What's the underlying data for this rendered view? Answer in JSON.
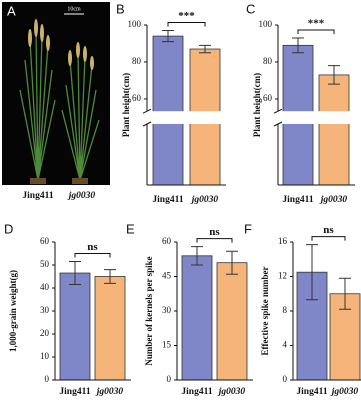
{
  "photo": {
    "panel": "A",
    "scale_text": "10cm",
    "labels": [
      "Jing411",
      "jg0030"
    ]
  },
  "chart_data": [
    {
      "type": "bar",
      "panel": "B",
      "ylabel": "Plant height(cm)",
      "categories": [
        "Jing411",
        "jg0030"
      ],
      "values": [
        94,
        87
      ],
      "errors": [
        3,
        2
      ],
      "colors": [
        "#8087c9",
        "#f5b57a"
      ],
      "ylim": [
        0,
        100
      ],
      "yticks": [
        60,
        80,
        100
      ],
      "axis_break": [
        30,
        55
      ],
      "significance": "***"
    },
    {
      "type": "bar",
      "panel": "C",
      "ylabel": "Plant height(cm)",
      "categories": [
        "Jing411",
        "jg0030"
      ],
      "values": [
        89,
        73
      ],
      "errors": [
        4,
        5
      ],
      "colors": [
        "#8087c9",
        "#f5b57a"
      ],
      "ylim": [
        0,
        100
      ],
      "yticks": [
        60,
        80,
        100
      ],
      "axis_break": [
        30,
        55
      ],
      "significance": "***"
    },
    {
      "type": "bar",
      "panel": "D",
      "ylabel": "1,000-grain weight(g)",
      "categories": [
        "Jing411",
        "jg0030"
      ],
      "values": [
        46.5,
        45
      ],
      "errors": [
        5,
        3
      ],
      "colors": [
        "#8087c9",
        "#f5b57a"
      ],
      "ylim": [
        0,
        60
      ],
      "yticks": [
        0,
        10,
        20,
        30,
        40,
        50,
        60
      ],
      "significance": "ns"
    },
    {
      "type": "bar",
      "panel": "E",
      "ylabel": "Number of kernels per spike",
      "categories": [
        "Jing411",
        "jg0030"
      ],
      "values": [
        54,
        51
      ],
      "errors": [
        4,
        5
      ],
      "colors": [
        "#8087c9",
        "#f5b57a"
      ],
      "ylim": [
        0,
        60
      ],
      "yticks": [
        0,
        15,
        30,
        45,
        60
      ],
      "significance": "ns"
    },
    {
      "type": "bar",
      "panel": "F",
      "ylabel": "Effective spike number",
      "categories": [
        "Jing411",
        "jg0030"
      ],
      "values": [
        12.5,
        10
      ],
      "errors": [
        3.2,
        1.8
      ],
      "colors": [
        "#8087c9",
        "#f5b57a"
      ],
      "ylim": [
        0,
        16
      ],
      "yticks": [
        0,
        4,
        8,
        12,
        16
      ],
      "significance": "ns"
    }
  ]
}
